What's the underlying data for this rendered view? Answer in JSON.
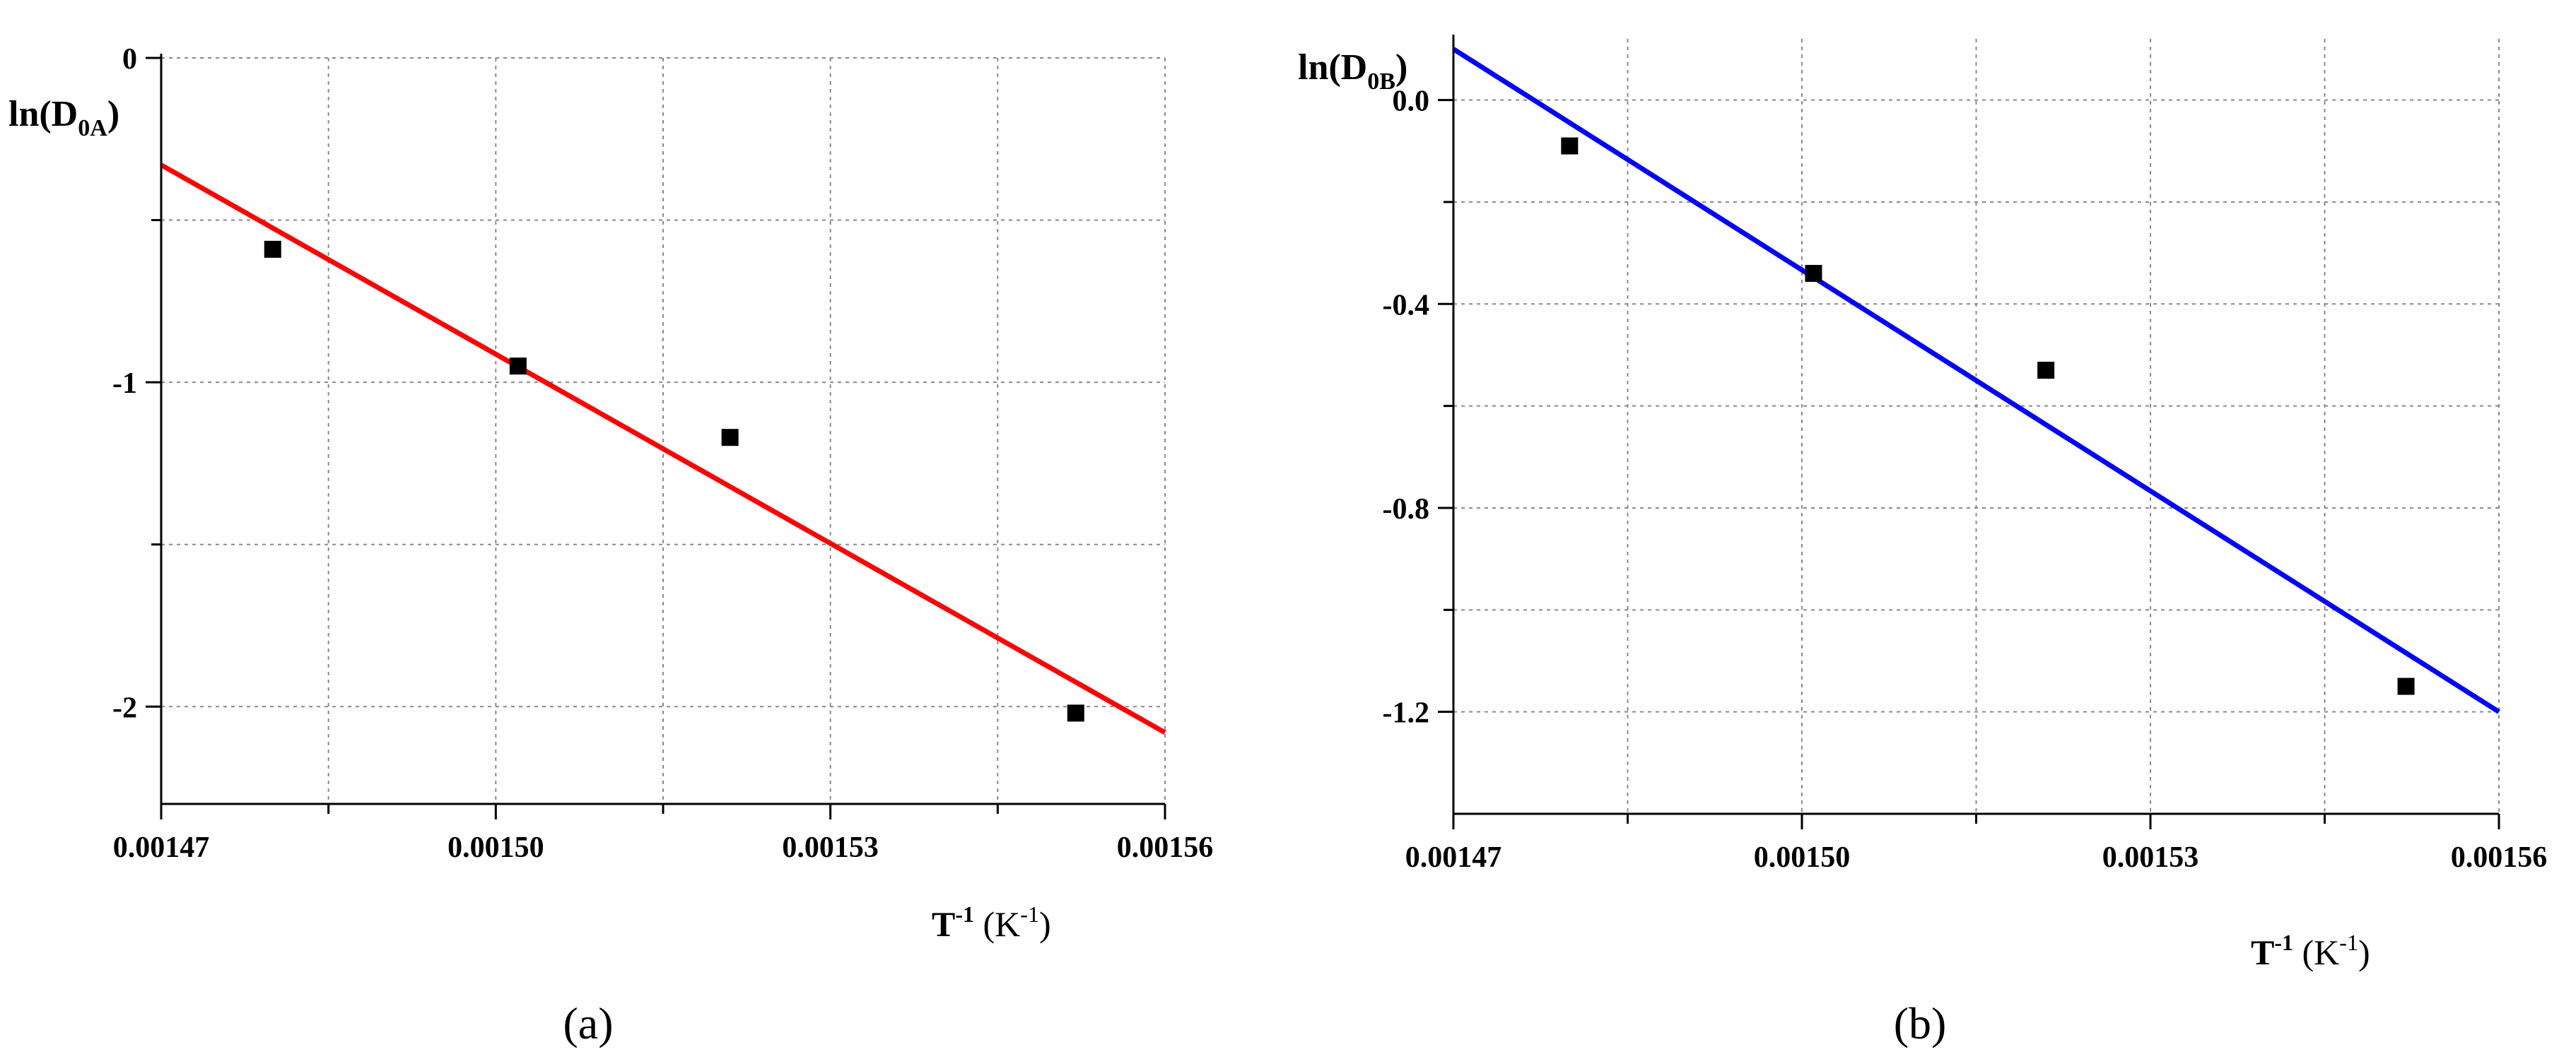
{
  "chart_data": [
    {
      "panel": "(a)",
      "type": "scatter",
      "xlabel": "T",
      "xlabel_sup": "-1",
      "xlabel_unit": " (K",
      "xlabel_unit_sup": "-1",
      "xlabel_unit_close": ")",
      "ylabel": "ln(D",
      "ylabel_sub": "0A",
      "ylabel_close": ")",
      "xlim": [
        0.00147,
        0.00156
      ],
      "ylim": [
        -2.3,
        0
      ],
      "xticks": [
        0.00147,
        0.0015,
        0.00153,
        0.00156
      ],
      "xtick_labels": [
        "0.00147",
        "0.00150",
        "0.00153",
        "0.00156"
      ],
      "yticks": [
        0,
        -1,
        -2
      ],
      "ytick_labels": [
        "0",
        "-1",
        "-2"
      ],
      "grid": true,
      "points": [
        {
          "x": 0.00148,
          "y": -0.59
        },
        {
          "x": 0.001502,
          "y": -0.95
        },
        {
          "x": 0.001521,
          "y": -1.17
        },
        {
          "x": 0.001552,
          "y": -2.02
        }
      ],
      "fit_line": {
        "color": "#ff0000",
        "x": [
          0.00147,
          0.00156
        ],
        "y": [
          -0.33,
          -2.08
        ]
      }
    },
    {
      "panel": "(b)",
      "type": "scatter",
      "xlabel": "T",
      "xlabel_sup": "-1",
      "xlabel_unit": " (K",
      "xlabel_unit_sup": "-1",
      "xlabel_unit_close": ")",
      "ylabel": "ln(D",
      "ylabel_sub": "0B",
      "ylabel_close": ")",
      "xlim": [
        0.00147,
        0.00156
      ],
      "ylim": [
        -1.4,
        0.12
      ],
      "xticks": [
        0.00147,
        0.0015,
        0.00153,
        0.00156
      ],
      "xtick_labels": [
        "0.00147",
        "0.00150",
        "0.00153",
        "0.00156"
      ],
      "yticks": [
        0,
        -0.4,
        -0.8,
        -1.2
      ],
      "ytick_labels": [
        "0.0",
        "-0.4",
        "-0.8",
        "-1.2"
      ],
      "grid": true,
      "points": [
        {
          "x": 0.00148,
          "y": -0.09
        },
        {
          "x": 0.001501,
          "y": -0.34
        },
        {
          "x": 0.001521,
          "y": -0.53
        },
        {
          "x": 0.001552,
          "y": -1.15
        }
      ],
      "fit_line": {
        "color": "#0000ff",
        "x": [
          0.00147,
          0.00156
        ],
        "y": [
          0.1,
          -1.2
        ]
      }
    }
  ]
}
